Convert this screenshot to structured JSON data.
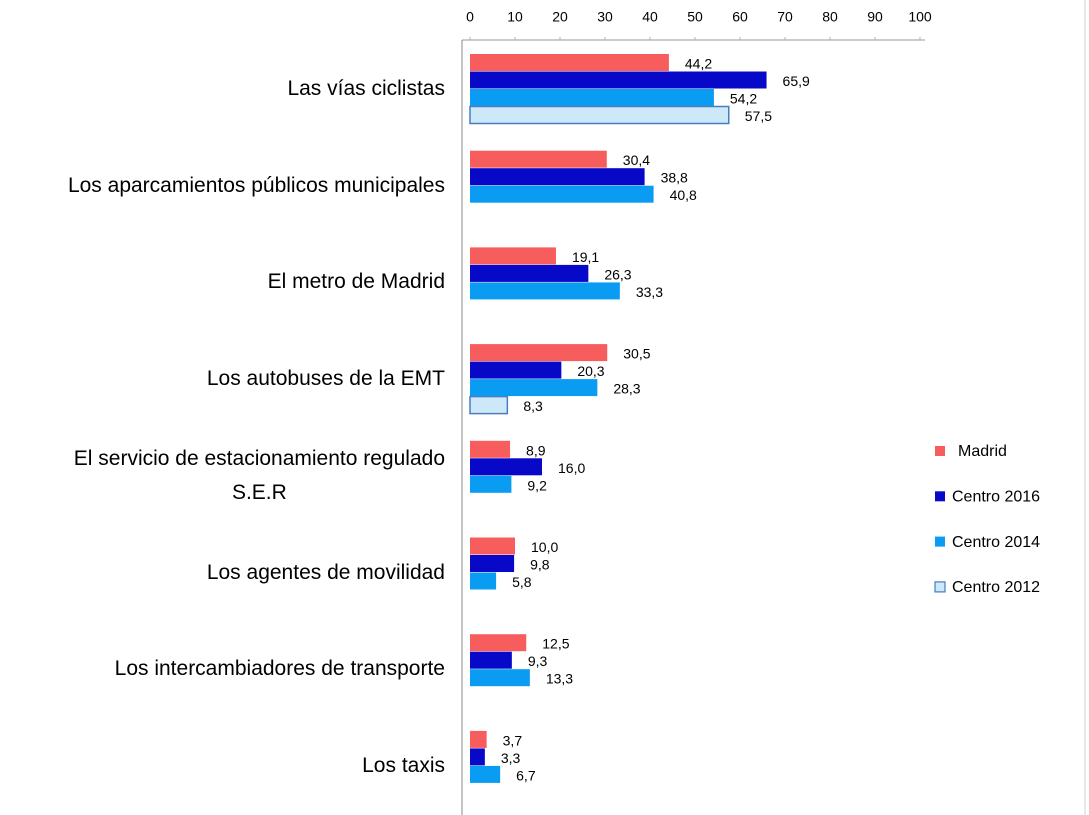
{
  "chart_data": {
    "type": "hbar",
    "categories": [
      "Las vías ciclistas",
      "Los aparcamientos públicos municipales",
      "El metro de Madrid",
      "Los autobuses de la  EMT",
      "El servicio de estacionamiento regulado\nS.E.R",
      "Los agentes de movilidad",
      "Los intercambiadores de transporte",
      "Los taxis"
    ],
    "series": [
      {
        "name": "Madrid",
        "color": "#f85d5d",
        "values": [
          44.2,
          30.4,
          19.1,
          30.5,
          8.9,
          10.0,
          12.5,
          3.7
        ],
        "value_labels": [
          "44,2",
          "30,4",
          "19,1",
          "30,5",
          "8,9",
          "10,0",
          "12,5",
          "3,7"
        ]
      },
      {
        "name": "Centro 2016",
        "color": "#0808c8",
        "values": [
          65.9,
          38.8,
          26.3,
          20.3,
          16.0,
          9.8,
          9.3,
          3.3
        ],
        "value_labels": [
          "65,9",
          "38,8",
          "26,3",
          "20,3",
          "16,0",
          "9,8",
          "9,3",
          "3,3"
        ]
      },
      {
        "name": "Centro 2014",
        "color": "#0a9cf2",
        "values": [
          54.2,
          40.8,
          33.3,
          28.3,
          9.2,
          5.8,
          13.3,
          6.7
        ],
        "value_labels": [
          "54,2",
          "40,8",
          "33,3",
          "28,3",
          "9,2",
          "5,8",
          "13,3",
          "6,7"
        ]
      },
      {
        "name": "Centro 2012",
        "color": "#cde9f9",
        "values": [
          57.5,
          null,
          null,
          8.3,
          null,
          null,
          null,
          null
        ],
        "value_labels": [
          "57,5",
          null,
          null,
          "8,3",
          null,
          null,
          null,
          null
        ]
      }
    ],
    "xlim": [
      0,
      100
    ],
    "xticks": [
      0,
      10,
      20,
      30,
      40,
      50,
      60,
      70,
      80,
      90,
      100
    ],
    "grid": false,
    "legend": "right"
  }
}
